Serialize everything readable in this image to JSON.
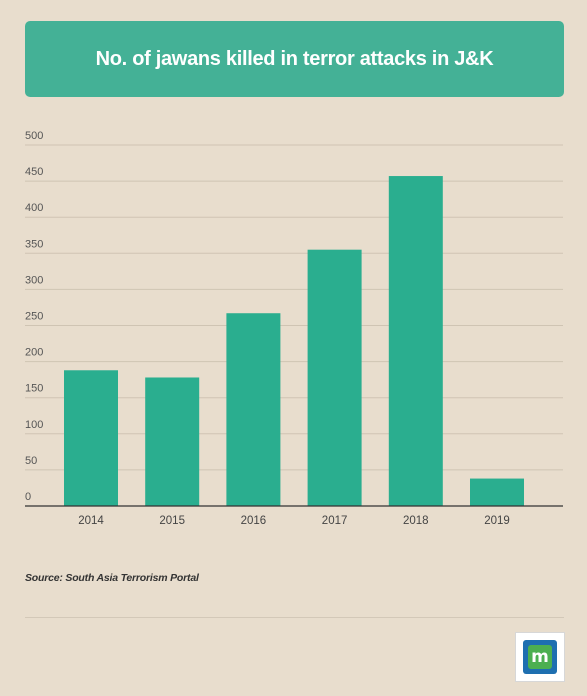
{
  "header": {
    "title": "No. of jawans killed in terror attacks in J&K"
  },
  "chart_data": {
    "type": "bar",
    "title": "No. of jawans killed in terror attacks in J&K",
    "categories": [
      "2014",
      "2015",
      "2016",
      "2017",
      "2018",
      "2019"
    ],
    "values": [
      188,
      178,
      267,
      355,
      457,
      38
    ],
    "xlabel": "",
    "ylabel": "",
    "ylim": [
      0,
      500
    ],
    "yticks": [
      0,
      50,
      100,
      150,
      200,
      250,
      300,
      350,
      400,
      450,
      500
    ],
    "grid": true,
    "legend": "none",
    "bar_color": "#2aae8f"
  },
  "footer": {
    "source": "Source: South Asia Terrorism Portal",
    "logo_icon": "m-logo-icon",
    "logo_glyph": "m"
  },
  "colors": {
    "background": "#e8ddcd",
    "banner": "#44b196",
    "bar": "#2aae8f"
  }
}
